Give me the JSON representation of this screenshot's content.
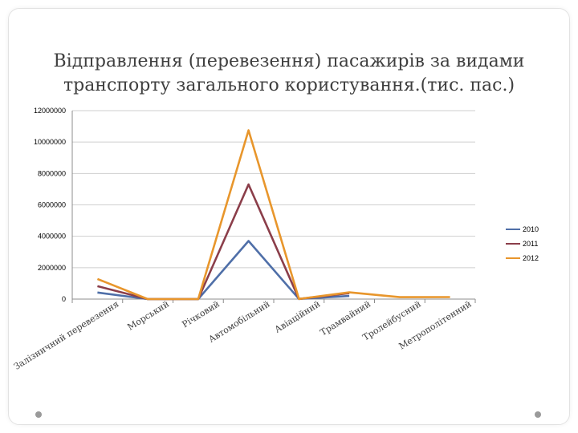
{
  "slide": {
    "title": "Відправлення (перевезення)   пасажирів за видами\nтранспорту загального користування.(тис. пас.)"
  },
  "chart_data": {
    "type": "line",
    "title": "Відправлення (перевезення)   пасажирів за видами транспорту загального користування.(тис. пас.)",
    "categories": [
      "Залізничний  перевезення",
      "Морський",
      "Річковий",
      "Автомобільний",
      "Авіаційний",
      "Трамвайний",
      "Тролейбусний",
      "Метрополітенний"
    ],
    "y_ticks": [
      "0",
      "2000000",
      "4000000",
      "6000000",
      "8000000",
      "10000000",
      "12000000"
    ],
    "ylim": [
      0,
      12000000
    ],
    "legend_position": "right",
    "grid": true,
    "series": [
      {
        "name": "2010",
        "color": "#4f6fa8",
        "values": [
          420000,
          2000,
          1500,
          3700000,
          10000,
          200000,
          null,
          null
        ]
      },
      {
        "name": "2011",
        "color": "#8b3e4a",
        "values": [
          820000,
          2000,
          1500,
          7300000,
          10000,
          380000,
          null,
          null
        ]
      },
      {
        "name": "2012",
        "color": "#e8962c",
        "values": [
          1280000,
          2000,
          1500,
          10750000,
          10000,
          430000,
          120000,
          130000
        ]
      }
    ]
  }
}
